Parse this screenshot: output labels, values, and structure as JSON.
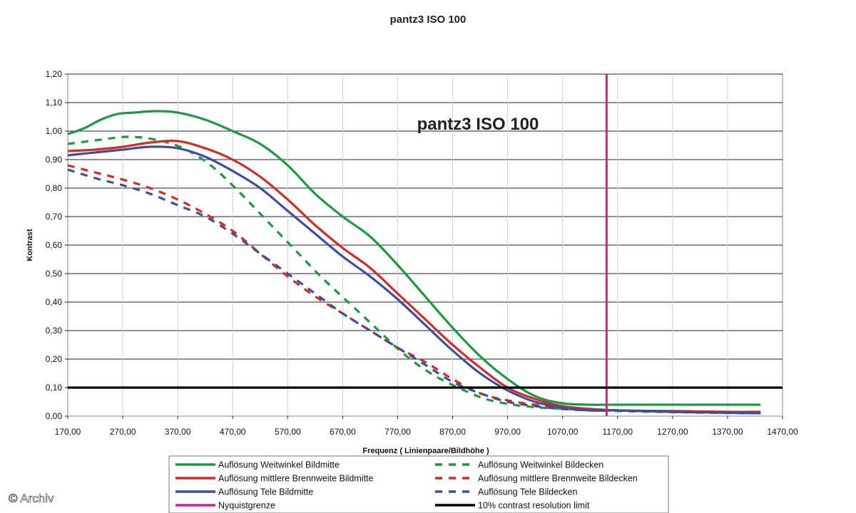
{
  "chart_data": {
    "type": "line",
    "title": "pantz3 ISO 100",
    "inner_title": "pantz3 ISO 100",
    "xlabel": "Frequenz ( Linienpaare/Bildhöhe )",
    "ylabel": "Kontrast",
    "xlim": [
      170,
      1470
    ],
    "ylim": [
      0,
      1.2
    ],
    "x_ticks": [
      "170,00",
      "270,00",
      "370,00",
      "470,00",
      "570,00",
      "670,00",
      "770,00",
      "870,00",
      "970,00",
      "1070,00",
      "1170,00",
      "1270,00",
      "1370,00",
      "1470,00"
    ],
    "y_ticks": [
      "0,00",
      "0,10",
      "0,20",
      "0,30",
      "0,40",
      "0,50",
      "0,60",
      "0,70",
      "0,80",
      "0,90",
      "1,00",
      "1,10",
      "1,20"
    ],
    "grid": "horizontal",
    "legend_position": "bottom",
    "series": [
      {
        "name": "Auflösung Weitwinkel Bildmitte",
        "color": "#1a9a3c",
        "dash": "solid",
        "x": [
          170,
          200,
          230,
          260,
          290,
          330,
          370,
          420,
          470,
          520,
          570,
          620,
          670,
          720,
          770,
          820,
          870,
          920,
          970,
          1020,
          1070,
          1120,
          1170,
          1270,
          1370,
          1430
        ],
        "y": [
          0.99,
          1.01,
          1.04,
          1.06,
          1.065,
          1.07,
          1.065,
          1.04,
          1.0,
          0.955,
          0.88,
          0.78,
          0.7,
          0.63,
          0.53,
          0.42,
          0.31,
          0.21,
          0.13,
          0.07,
          0.045,
          0.04,
          0.04,
          0.04,
          0.04,
          0.04
        ]
      },
      {
        "name": "Auflösung Weitwinkel Bildecken",
        "color": "#1a9a3c",
        "dash": "dashed",
        "x": [
          170,
          230,
          280,
          330,
          380,
          430,
          480,
          530,
          580,
          630,
          680,
          730,
          780,
          830,
          880,
          930,
          980,
          1030,
          1080,
          1130,
          1170,
          1270,
          1370,
          1430
        ],
        "y": [
          0.955,
          0.97,
          0.98,
          0.97,
          0.94,
          0.88,
          0.79,
          0.69,
          0.59,
          0.49,
          0.4,
          0.31,
          0.22,
          0.15,
          0.1,
          0.06,
          0.04,
          0.03,
          0.025,
          0.02,
          0.02,
          0.015,
          0.012,
          0.01
        ]
      },
      {
        "name": "Auflösung mittlere Brennweite Bildmitte",
        "color": "#d62a26",
        "dash": "solid",
        "x": [
          170,
          220,
          270,
          320,
          370,
          420,
          470,
          520,
          570,
          620,
          670,
          720,
          770,
          820,
          870,
          920,
          970,
          1020,
          1070,
          1120,
          1170,
          1270,
          1370,
          1430
        ],
        "y": [
          0.93,
          0.935,
          0.945,
          0.96,
          0.965,
          0.94,
          0.9,
          0.84,
          0.76,
          0.67,
          0.59,
          0.52,
          0.43,
          0.34,
          0.25,
          0.17,
          0.1,
          0.06,
          0.035,
          0.025,
          0.02,
          0.018,
          0.015,
          0.015
        ]
      },
      {
        "name": "Auflösung mittlere Brennweite Bildecken",
        "color": "#d62a26",
        "dash": "dashed",
        "x": [
          170,
          220,
          270,
          320,
          370,
          420,
          470,
          520,
          570,
          620,
          670,
          720,
          770,
          820,
          870,
          920,
          970,
          1020,
          1070,
          1120,
          1170,
          1270,
          1370,
          1430
        ],
        "y": [
          0.88,
          0.855,
          0.83,
          0.8,
          0.76,
          0.71,
          0.65,
          0.57,
          0.49,
          0.42,
          0.36,
          0.3,
          0.24,
          0.19,
          0.13,
          0.08,
          0.055,
          0.04,
          0.03,
          0.025,
          0.02,
          0.015,
          0.012,
          0.01
        ]
      },
      {
        "name": "Auflösung Tele Bildmitte",
        "color": "#3a4fa0",
        "dash": "solid",
        "x": [
          170,
          220,
          270,
          320,
          370,
          420,
          470,
          520,
          570,
          620,
          670,
          720,
          770,
          820,
          870,
          920,
          970,
          1020,
          1070,
          1120,
          1170,
          1270,
          1370,
          1430
        ],
        "y": [
          0.915,
          0.925,
          0.935,
          0.945,
          0.94,
          0.91,
          0.86,
          0.8,
          0.72,
          0.64,
          0.56,
          0.49,
          0.41,
          0.32,
          0.23,
          0.15,
          0.09,
          0.05,
          0.03,
          0.02,
          0.02,
          0.015,
          0.012,
          0.01
        ]
      },
      {
        "name": "Auflösung Tele Bildecken",
        "color": "#3a4fa0",
        "dash": "dashed",
        "x": [
          170,
          220,
          270,
          320,
          370,
          420,
          470,
          520,
          570,
          620,
          670,
          720,
          770,
          820,
          870,
          920,
          970,
          1020,
          1070,
          1120,
          1170,
          1270,
          1370,
          1430
        ],
        "y": [
          0.865,
          0.835,
          0.81,
          0.78,
          0.74,
          0.7,
          0.64,
          0.57,
          0.5,
          0.43,
          0.36,
          0.3,
          0.24,
          0.18,
          0.12,
          0.08,
          0.05,
          0.035,
          0.025,
          0.02,
          0.018,
          0.014,
          0.011,
          0.01
        ]
      }
    ],
    "reference_lines": [
      {
        "name": "Nyquistgrenze",
        "color": "#d4208a",
        "orientation": "vertical",
        "value": 1150
      },
      {
        "name": "10% contrast resolution limit",
        "color": "#000000",
        "orientation": "horizontal",
        "value": 0.1
      }
    ]
  },
  "watermark": "© Archiv"
}
